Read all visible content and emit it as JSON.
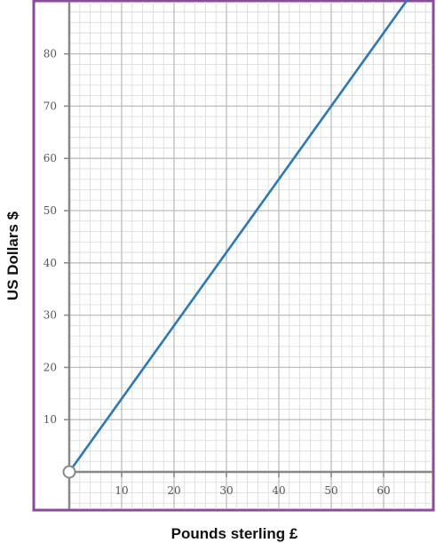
{
  "chart_data": {
    "type": "line",
    "title": "",
    "xlabel": "Pounds sterling £",
    "ylabel": "US Dollars $",
    "xlim": [
      0,
      70
    ],
    "ylim": [
      0,
      90
    ],
    "grid": true,
    "x_ticks": [
      10,
      20,
      30,
      40,
      50,
      60
    ],
    "y_ticks": [
      10,
      20,
      30,
      40,
      50,
      60,
      70,
      80
    ],
    "series": [
      {
        "x": [
          0,
          65
        ],
        "y": [
          0,
          91
        ],
        "color": "#2a7ab9"
      }
    ],
    "colors": {
      "border": "#8b4a9c",
      "grid_minor": "#d9d9d9",
      "grid_major": "#bdbdbd",
      "axis": "#888888",
      "line": "#2a7ab9"
    }
  }
}
